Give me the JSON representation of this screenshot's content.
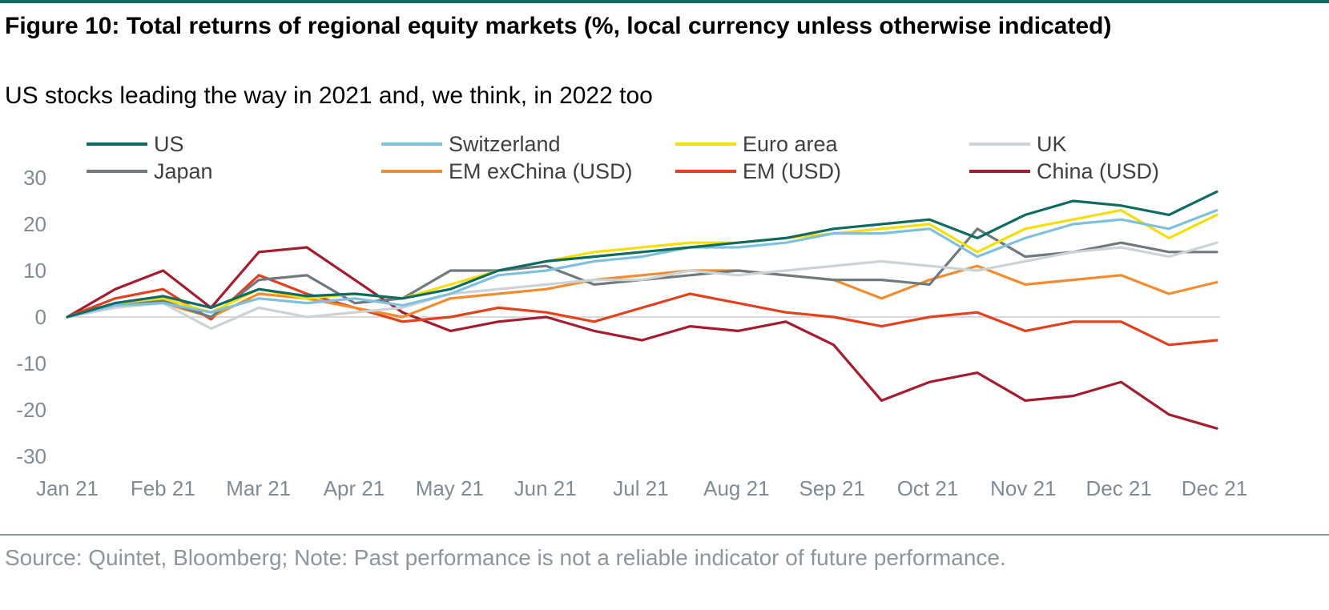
{
  "title": "Figure 10: Total returns of regional equity markets (%, local currency unless otherwise indicated)",
  "subtitle": "US stocks leading the way in 2021 and, we think, in 2022 too",
  "source": "Source: Quintet, Bloomberg; Note: Past performance is not a reliable indicator of future performance.",
  "chart_data": {
    "type": "line",
    "x_tick_labels": [
      "Jan 21",
      "Feb 21",
      "Mar 21",
      "Apr 21",
      "May 21",
      "Jun 21",
      "Jul 21",
      "Aug 21",
      "Sep 21",
      "Oct 21",
      "Nov 21",
      "Dec 21",
      "Dec 21"
    ],
    "y_tick_labels": [
      "30",
      "20",
      "10",
      "0",
      "-10",
      "-20",
      "-30"
    ],
    "ylim": [
      -30,
      30
    ],
    "x": [
      0,
      0.5,
      1,
      1.5,
      2,
      2.5,
      3,
      3.5,
      4,
      4.5,
      5,
      5.5,
      6,
      6.5,
      7,
      7.5,
      8,
      8.5,
      9,
      9.5,
      10,
      10.5,
      11,
      11.5,
      12
    ],
    "grid": false,
    "zero_line": true,
    "legend_position": "top",
    "series": [
      {
        "name": "US",
        "color": "#0e6b63",
        "values": [
          0,
          3,
          4.5,
          2,
          6,
          4.5,
          5,
          4,
          6,
          10,
          12,
          13,
          14,
          15,
          16,
          17,
          19,
          20,
          21,
          17,
          22,
          25,
          24,
          22,
          27
        ]
      },
      {
        "name": "Switzerland",
        "color": "#7fc1dd",
        "values": [
          0,
          2.5,
          3,
          1,
          4,
          3,
          4,
          2.5,
          5,
          9,
          10,
          12,
          13,
          15,
          15,
          16,
          18,
          18,
          19,
          13,
          17,
          20,
          21,
          19,
          23
        ]
      },
      {
        "name": "Euro area",
        "color": "#f5de0a",
        "values": [
          0,
          3,
          4,
          1,
          6,
          4,
          5,
          4,
          7,
          10,
          12,
          14,
          15,
          16,
          16,
          17,
          18,
          19,
          20,
          14,
          19,
          21,
          23,
          17,
          22
        ]
      },
      {
        "name": "UK",
        "color": "#ccd3d6",
        "values": [
          0,
          2,
          3,
          -2.5,
          2,
          0,
          1,
          2,
          5,
          6,
          7,
          8,
          8,
          10,
          9,
          10,
          11,
          12,
          11,
          10,
          12,
          14,
          15,
          13,
          16
        ]
      },
      {
        "name": "Japan",
        "color": "#6f7a7f",
        "values": [
          0,
          3,
          3.5,
          0,
          8,
          9,
          3,
          4,
          10,
          10,
          11,
          7,
          8,
          9,
          10,
          9,
          8,
          8,
          7,
          19,
          13,
          14,
          16,
          14,
          14
        ]
      },
      {
        "name": "EM exChina (USD)",
        "color": "#f28c2f",
        "values": [
          0,
          2.5,
          3,
          0,
          5,
          4,
          2,
          0,
          4,
          5,
          6,
          8,
          9,
          10,
          10,
          9,
          8,
          4,
          8,
          11,
          7,
          8,
          9,
          5,
          7.5
        ]
      },
      {
        "name": "EM (USD)",
        "color": "#e2411e",
        "values": [
          0,
          4,
          6,
          -0.5,
          9,
          5,
          2,
          -1,
          0,
          2,
          1,
          -1,
          2,
          5,
          3,
          1,
          0,
          -2,
          0,
          1,
          -3,
          -1,
          -1,
          -6,
          -5
        ]
      },
      {
        "name": "China (USD)",
        "color": "#a51c30",
        "values": [
          0,
          6,
          10,
          2,
          14,
          15,
          8,
          1,
          -3,
          -1,
          0,
          -3,
          -5,
          -2,
          -3,
          -1,
          -6,
          -18,
          -14,
          -12,
          -18,
          -17,
          -14,
          -21,
          -24
        ]
      }
    ]
  }
}
